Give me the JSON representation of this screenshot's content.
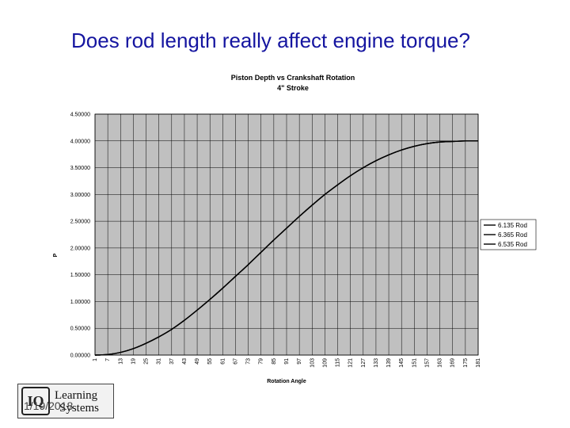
{
  "slide": {
    "title": "Does rod length really affect engine torque?",
    "date": "1/19/2018"
  },
  "logo": {
    "mark": "IQ",
    "line1": "Learning",
    "line2": "Systems"
  },
  "chart_data": {
    "type": "line",
    "title": "Piston Depth vs Crankshaft Rotation",
    "subtitle": "4\" Stroke",
    "xlabel": "Rotation Angle",
    "ylabel": "P",
    "ylim": [
      0,
      4.5
    ],
    "xlim": [
      1,
      181
    ],
    "y_ticks": [
      "0.00000",
      "0.50000",
      "1.00000",
      "1.50000",
      "2.00000",
      "2.50000",
      "3.00000",
      "3.50000",
      "4.00000",
      "4.50000"
    ],
    "x_ticks": [
      "1",
      "7",
      "13",
      "19",
      "25",
      "31",
      "37",
      "43",
      "49",
      "55",
      "61",
      "67",
      "73",
      "79",
      "85",
      "91",
      "97",
      "103",
      "109",
      "115",
      "121",
      "127",
      "133",
      "139",
      "145",
      "151",
      "157",
      "163",
      "169",
      "175",
      "181"
    ],
    "grid": true,
    "legend": "right",
    "background_color": "#c0c0c0",
    "series": [
      {
        "name": "6.135 Rod",
        "color": "#000000",
        "x": [
          1,
          7,
          13,
          19,
          25,
          31,
          37,
          43,
          49,
          55,
          61,
          67,
          73,
          79,
          85,
          91,
          97,
          103,
          109,
          115,
          121,
          127,
          133,
          139,
          145,
          151,
          157,
          163,
          169,
          175,
          181
        ],
        "values": [
          0.0,
          0.01,
          0.05,
          0.12,
          0.22,
          0.34,
          0.48,
          0.65,
          0.84,
          1.04,
          1.25,
          1.47,
          1.69,
          1.92,
          2.15,
          2.37,
          2.59,
          2.8,
          3.0,
          3.18,
          3.35,
          3.5,
          3.63,
          3.74,
          3.83,
          3.9,
          3.95,
          3.98,
          3.99,
          4.0,
          4.0
        ]
      },
      {
        "name": "6.365 Rod",
        "color": "#000000",
        "x": [
          1,
          7,
          13,
          19,
          25,
          31,
          37,
          43,
          49,
          55,
          61,
          67,
          73,
          79,
          85,
          91,
          97,
          103,
          109,
          115,
          121,
          127,
          133,
          139,
          145,
          151,
          157,
          163,
          169,
          175,
          181
        ],
        "values": [
          0.0,
          0.01,
          0.05,
          0.12,
          0.22,
          0.34,
          0.48,
          0.65,
          0.84,
          1.04,
          1.25,
          1.47,
          1.69,
          1.92,
          2.15,
          2.37,
          2.59,
          2.8,
          3.0,
          3.18,
          3.35,
          3.5,
          3.63,
          3.74,
          3.83,
          3.9,
          3.95,
          3.98,
          3.99,
          4.0,
          4.0
        ]
      },
      {
        "name": "6.535 Rod",
        "color": "#000000",
        "x": [
          1,
          7,
          13,
          19,
          25,
          31,
          37,
          43,
          49,
          55,
          61,
          67,
          73,
          79,
          85,
          91,
          97,
          103,
          109,
          115,
          121,
          127,
          133,
          139,
          145,
          151,
          157,
          163,
          169,
          175,
          181
        ],
        "values": [
          0.0,
          0.01,
          0.05,
          0.12,
          0.22,
          0.34,
          0.48,
          0.65,
          0.84,
          1.04,
          1.25,
          1.47,
          1.69,
          1.92,
          2.15,
          2.37,
          2.59,
          2.8,
          3.0,
          3.18,
          3.35,
          3.5,
          3.63,
          3.74,
          3.83,
          3.9,
          3.95,
          3.98,
          3.99,
          4.0,
          4.0
        ]
      }
    ]
  }
}
